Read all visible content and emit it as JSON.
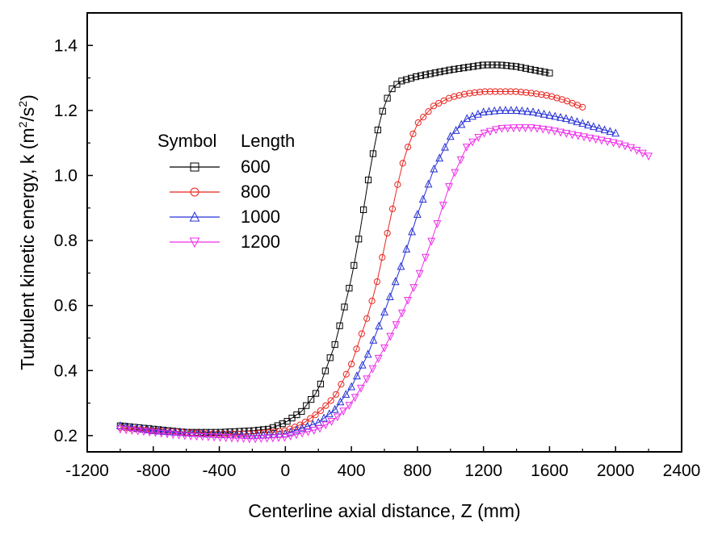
{
  "chart_data": {
    "type": "line",
    "xlabel": "Centerline axial distance, Z (mm)",
    "ylabel": {
      "prefix": "Turbulent kinetic energy, k (m",
      "sup1": "2",
      "mid": "/s",
      "sup2": "2",
      "suffix": ")"
    },
    "xlim": [
      -1200,
      2400
    ],
    "ylim": [
      0.15,
      1.5
    ],
    "x_ticks": [
      -1200,
      -800,
      -400,
      0,
      400,
      800,
      1200,
      1600,
      2000,
      2400
    ],
    "x_tick_labels": [
      "-1200",
      "-800",
      "-400",
      "0",
      "400",
      "800",
      "1200",
      "1600",
      "2000",
      "2400"
    ],
    "y_ticks": [
      0.2,
      0.4,
      0.6,
      0.8,
      1.0,
      1.2,
      1.4
    ],
    "y_tick_labels": [
      "0.2",
      "0.4",
      "0.6",
      "0.8",
      "1.0",
      "1.2",
      "1.4"
    ],
    "grid": false,
    "legend": {
      "placement": "center-left",
      "header_symbol": "Symbol",
      "header_length": "Length",
      "entries": [
        "600",
        "800",
        "1000",
        "1200"
      ]
    },
    "series": [
      {
        "name": "600",
        "marker": "square",
        "color": "#000000",
        "x_start": -1000,
        "x_end": 1600,
        "points": [
          [
            -1000,
            0.23
          ],
          [
            -800,
            0.22
          ],
          [
            -600,
            0.21
          ],
          [
            -400,
            0.21
          ],
          [
            -200,
            0.215
          ],
          [
            -100,
            0.22
          ],
          [
            0,
            0.24
          ],
          [
            100,
            0.275
          ],
          [
            200,
            0.34
          ],
          [
            300,
            0.48
          ],
          [
            350,
            0.58
          ],
          [
            400,
            0.68
          ],
          [
            450,
            0.82
          ],
          [
            500,
            0.98
          ],
          [
            550,
            1.12
          ],
          [
            600,
            1.22
          ],
          [
            650,
            1.27
          ],
          [
            700,
            1.29
          ],
          [
            800,
            1.305
          ],
          [
            1000,
            1.325
          ],
          [
            1200,
            1.34
          ],
          [
            1300,
            1.34
          ],
          [
            1400,
            1.335
          ],
          [
            1500,
            1.325
          ],
          [
            1600,
            1.315
          ]
        ]
      },
      {
        "name": "800",
        "marker": "circle",
        "color": "#e8251f",
        "x_start": -1000,
        "x_end": 1800,
        "points": [
          [
            -1000,
            0.225
          ],
          [
            -800,
            0.215
          ],
          [
            -600,
            0.21
          ],
          [
            -400,
            0.205
          ],
          [
            -200,
            0.205
          ],
          [
            0,
            0.215
          ],
          [
            100,
            0.235
          ],
          [
            200,
            0.27
          ],
          [
            300,
            0.32
          ],
          [
            400,
            0.42
          ],
          [
            500,
            0.57
          ],
          [
            550,
            0.66
          ],
          [
            600,
            0.78
          ],
          [
            650,
            0.9
          ],
          [
            700,
            1.02
          ],
          [
            750,
            1.1
          ],
          [
            800,
            1.16
          ],
          [
            900,
            1.215
          ],
          [
            1000,
            1.24
          ],
          [
            1100,
            1.252
          ],
          [
            1200,
            1.258
          ],
          [
            1400,
            1.258
          ],
          [
            1500,
            1.253
          ],
          [
            1600,
            1.245
          ],
          [
            1700,
            1.23
          ],
          [
            1800,
            1.21
          ]
        ]
      },
      {
        "name": "1000",
        "marker": "triangle-up",
        "color": "#2630d6",
        "x_start": -1000,
        "x_end": 2000,
        "points": [
          [
            -1000,
            0.23
          ],
          [
            -800,
            0.215
          ],
          [
            -600,
            0.208
          ],
          [
            -400,
            0.203
          ],
          [
            -200,
            0.2
          ],
          [
            0,
            0.205
          ],
          [
            200,
            0.24
          ],
          [
            300,
            0.28
          ],
          [
            400,
            0.35
          ],
          [
            500,
            0.45
          ],
          [
            600,
            0.58
          ],
          [
            700,
            0.72
          ],
          [
            800,
            0.88
          ],
          [
            900,
            1.02
          ],
          [
            1000,
            1.12
          ],
          [
            1100,
            1.175
          ],
          [
            1200,
            1.195
          ],
          [
            1300,
            1.2
          ],
          [
            1400,
            1.2
          ],
          [
            1500,
            1.195
          ],
          [
            1600,
            1.185
          ],
          [
            1700,
            1.175
          ],
          [
            1800,
            1.16
          ],
          [
            1900,
            1.145
          ],
          [
            2000,
            1.13
          ]
        ]
      },
      {
        "name": "1200",
        "marker": "triangle-down",
        "color": "#ee2de8",
        "x_start": -1000,
        "x_end": 2200,
        "points": [
          [
            -1000,
            0.22
          ],
          [
            -800,
            0.21
          ],
          [
            -600,
            0.2
          ],
          [
            -400,
            0.195
          ],
          [
            -200,
            0.19
          ],
          [
            0,
            0.195
          ],
          [
            200,
            0.22
          ],
          [
            300,
            0.25
          ],
          [
            400,
            0.3
          ],
          [
            500,
            0.38
          ],
          [
            600,
            0.47
          ],
          [
            700,
            0.57
          ],
          [
            800,
            0.68
          ],
          [
            900,
            0.82
          ],
          [
            1000,
            0.98
          ],
          [
            1100,
            1.09
          ],
          [
            1200,
            1.13
          ],
          [
            1300,
            1.145
          ],
          [
            1400,
            1.147
          ],
          [
            1500,
            1.147
          ],
          [
            1600,
            1.14
          ],
          [
            1800,
            1.12
          ],
          [
            2000,
            1.1
          ],
          [
            2100,
            1.085
          ],
          [
            2200,
            1.06
          ]
        ]
      }
    ]
  }
}
